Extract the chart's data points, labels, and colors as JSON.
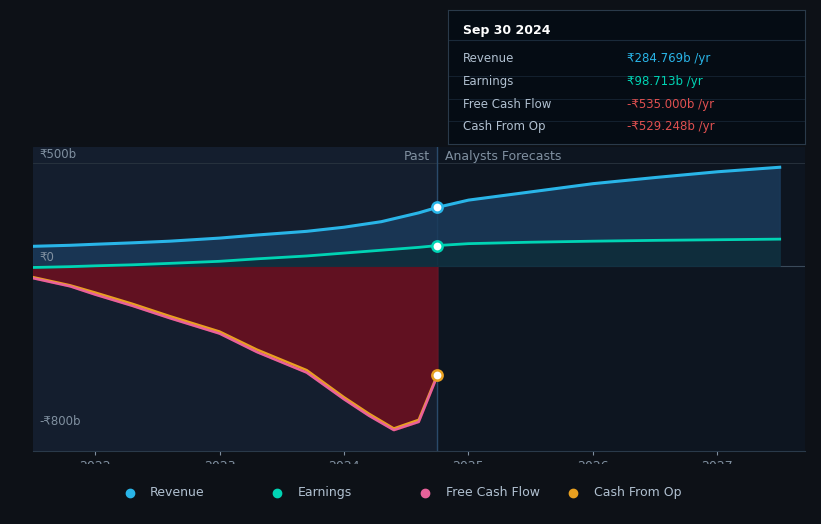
{
  "bg_color": "#0d1117",
  "plot_bg_color": "#0d1520",
  "past_bg_color": "#141e2e",
  "future_bg_color": "#0d1520",
  "y500_label": "₹500b",
  "y0_label": "₹0",
  "y_neg800_label": "-₹800b",
  "past_label": "Past",
  "forecast_label": "Analysts Forecasts",
  "divider_x": 2024.75,
  "x_ticks": [
    2022,
    2023,
    2024,
    2025,
    2026,
    2027
  ],
  "xlim": [
    2021.5,
    2027.7
  ],
  "ylim": [
    -900,
    580
  ],
  "revenue": {
    "x": [
      2021.5,
      2021.8,
      2022.0,
      2022.3,
      2022.6,
      2023.0,
      2023.3,
      2023.7,
      2024.0,
      2024.3,
      2024.6,
      2024.75,
      2025.0,
      2025.5,
      2026.0,
      2026.5,
      2027.0,
      2027.5
    ],
    "y": [
      95,
      100,
      105,
      112,
      120,
      135,
      150,
      168,
      188,
      215,
      258,
      284.769,
      320,
      360,
      400,
      430,
      458,
      480
    ],
    "color": "#29b5e8",
    "dot_x": 2024.75,
    "dot_y": 284.769
  },
  "earnings": {
    "x": [
      2021.5,
      2021.8,
      2022.0,
      2022.3,
      2022.6,
      2023.0,
      2023.3,
      2023.7,
      2024.0,
      2024.3,
      2024.6,
      2024.75,
      2025.0,
      2025.5,
      2026.0,
      2026.5,
      2027.0,
      2027.5
    ],
    "y": [
      -8,
      -4,
      0,
      5,
      12,
      22,
      34,
      48,
      62,
      76,
      90,
      98.713,
      108,
      115,
      120,
      124,
      127,
      130
    ],
    "color": "#00d4b4",
    "dot_x": 2024.75,
    "dot_y": 98.713
  },
  "free_cash_flow": {
    "x": [
      2021.5,
      2021.8,
      2022.0,
      2022.3,
      2022.6,
      2023.0,
      2023.3,
      2023.7,
      2024.0,
      2024.2,
      2024.4,
      2024.6,
      2024.75
    ],
    "y": [
      -60,
      -100,
      -140,
      -195,
      -255,
      -330,
      -420,
      -520,
      -650,
      -730,
      -800,
      -760,
      -535.0
    ],
    "color": "#e8629a",
    "dot_x": 2024.75,
    "dot_y": -535.0
  },
  "cash_from_op": {
    "x": [
      2021.5,
      2021.8,
      2022.0,
      2022.3,
      2022.6,
      2023.0,
      2023.3,
      2023.7,
      2024.0,
      2024.2,
      2024.4,
      2024.6,
      2024.75
    ],
    "y": [
      -55,
      -95,
      -130,
      -185,
      -245,
      -320,
      -408,
      -508,
      -640,
      -720,
      -792,
      -750,
      -529.248
    ],
    "color": "#e8a020",
    "dot_x": 2024.75,
    "dot_y": -529.248
  },
  "tooltip": {
    "title": "Sep 30 2024",
    "bg_color": "#050c14",
    "border_color": "#2a3a4a",
    "rows": [
      {
        "label": "Revenue",
        "value": "₹284.769b /yr",
        "color": "#29b5e8"
      },
      {
        "label": "Earnings",
        "value": "₹98.713b /yr",
        "color": "#00d4b4"
      },
      {
        "label": "Free Cash Flow",
        "value": "-₹535.000b /yr",
        "color": "#e05050"
      },
      {
        "label": "Cash From Op",
        "value": "-₹529.248b /yr",
        "color": "#e05050"
      }
    ]
  },
  "legend": [
    {
      "label": "Revenue",
      "color": "#29b5e8"
    },
    {
      "label": "Earnings",
      "color": "#00d4b4"
    },
    {
      "label": "Free Cash Flow",
      "color": "#e8629a"
    },
    {
      "label": "Cash From Op",
      "color": "#e8a020"
    }
  ]
}
